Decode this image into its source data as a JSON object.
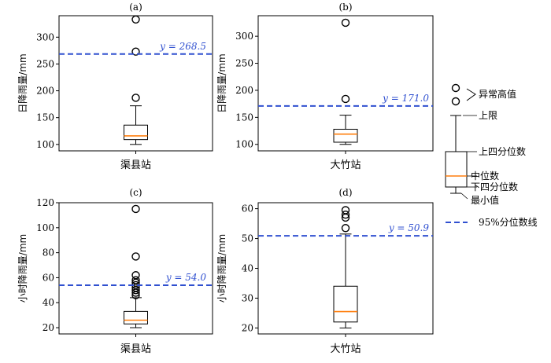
{
  "chart_data": [
    {
      "type": "box",
      "title": "(a)",
      "ylabel": "日降雨量/mm",
      "category": "渠县站",
      "ylim": [
        88,
        340
      ],
      "yticks": [
        100,
        150,
        200,
        250,
        300
      ],
      "box": {
        "whislo": 100,
        "q1": 109,
        "med": 116,
        "q3": 136,
        "whishi": 172
      },
      "fliers": [
        187,
        273,
        333
      ],
      "threshold": {
        "value": 268.5,
        "label": "y = 268.5"
      }
    },
    {
      "type": "box",
      "title": "(b)",
      "ylabel": "日降雨量/mm",
      "category": "大竹站",
      "ylim": [
        88,
        338
      ],
      "yticks": [
        100,
        150,
        200,
        250,
        300
      ],
      "box": {
        "whislo": 100,
        "q1": 104,
        "med": 119,
        "q3": 128,
        "whishi": 154
      },
      "fliers": [
        184,
        325
      ],
      "threshold": {
        "value": 171.0,
        "label": "y = 171.0"
      }
    },
    {
      "type": "box",
      "title": "(c)",
      "ylabel": "小时降雨量/mm",
      "category": "渠县站",
      "ylim": [
        15,
        120
      ],
      "yticks": [
        20,
        40,
        60,
        80,
        100,
        120
      ],
      "box": {
        "whislo": 20,
        "q1": 23,
        "med": 26,
        "q3": 33,
        "whishi": 44
      },
      "fliers": [
        46,
        48,
        50,
        52,
        54,
        56,
        58,
        62,
        77,
        115
      ],
      "threshold": {
        "value": 54.0,
        "label": "y = 54.0"
      }
    },
    {
      "type": "box",
      "title": "(d)",
      "ylabel": "小时降雨量/mm",
      "category": "大竹站",
      "ylim": [
        18,
        62
      ],
      "yticks": [
        20,
        30,
        40,
        50,
        60
      ],
      "box": {
        "whislo": 20,
        "q1": 22,
        "med": 25.5,
        "q3": 34,
        "whishi": 51.5
      },
      "fliers": [
        53.5,
        57,
        58,
        59.5
      ],
      "threshold": {
        "value": 50.9,
        "label": "y = 50.9"
      }
    }
  ],
  "legend": {
    "outlier_label": "异常高值",
    "upper_label": "上限",
    "q3_label": "上四分位数",
    "median_label": "中位数",
    "q1_label": "下四分位数",
    "min_label": "最小值",
    "threshold_label": "95%分位数线"
  },
  "colors": {
    "median": "#ff7f0e",
    "threshold": "#3050d0",
    "box": "#000000",
    "label": "#3050d0"
  }
}
